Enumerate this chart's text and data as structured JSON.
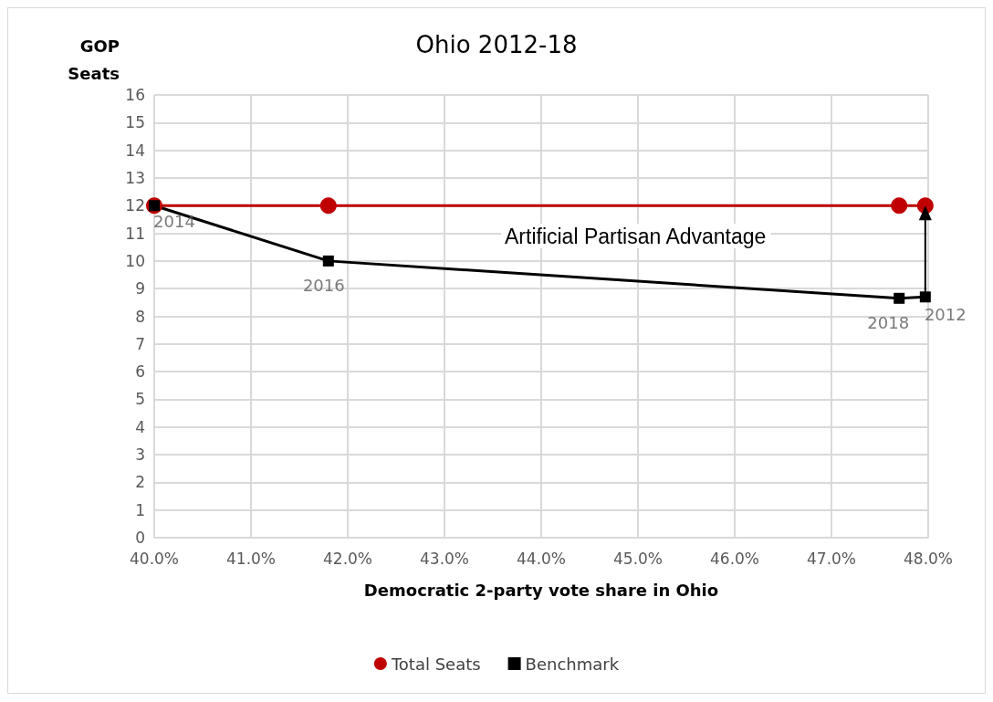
{
  "chart_data": {
    "type": "line",
    "title": "Ohio 2012-18",
    "xlabel": "Democratic 2-party vote share in Ohio",
    "ylabel": "GOP Seats",
    "series": [
      {
        "name": "Total Seats",
        "color": "#c00000",
        "marker": "circle",
        "x": [
          40.0,
          41.8,
          47.7,
          47.97
        ],
        "values": [
          12,
          12,
          12,
          12
        ]
      },
      {
        "name": "Benchmark",
        "color": "#000000",
        "marker": "square",
        "x": [
          40.0,
          41.8,
          47.7,
          47.97
        ],
        "values": [
          12,
          10.0,
          8.65,
          8.7
        ]
      }
    ],
    "xlim": [
      40,
      48
    ],
    "xticks": [
      {
        "value": 40,
        "label": "40.0%"
      },
      {
        "value": 41,
        "label": "41.0%"
      },
      {
        "value": 42,
        "label": "42.0%"
      },
      {
        "value": 43,
        "label": "43.0%"
      },
      {
        "value": 44,
        "label": "44.0%"
      },
      {
        "value": 45,
        "label": "45.0%"
      },
      {
        "value": 46,
        "label": "46.0%"
      },
      {
        "value": 47,
        "label": "47.0%"
      },
      {
        "value": 48,
        "label": "48.0%"
      }
    ],
    "ylim": [
      0,
      16
    ],
    "yticks": [
      0,
      1,
      2,
      3,
      4,
      5,
      6,
      7,
      8,
      9,
      10,
      11,
      12,
      13,
      14,
      15,
      16
    ],
    "annotations": [
      "Artificial Partisan Advantage",
      {
        "text": "2014",
        "x": 40.0,
        "y": 12
      },
      {
        "text": "2016",
        "x": 41.8,
        "y": 10.0
      },
      {
        "text": "2018",
        "x": 47.7,
        "y": 8.65
      },
      {
        "text": "2012",
        "x": 47.97,
        "y": 8.7
      }
    ],
    "grid": true,
    "legend": "bottom",
    "line_style": "solid"
  }
}
